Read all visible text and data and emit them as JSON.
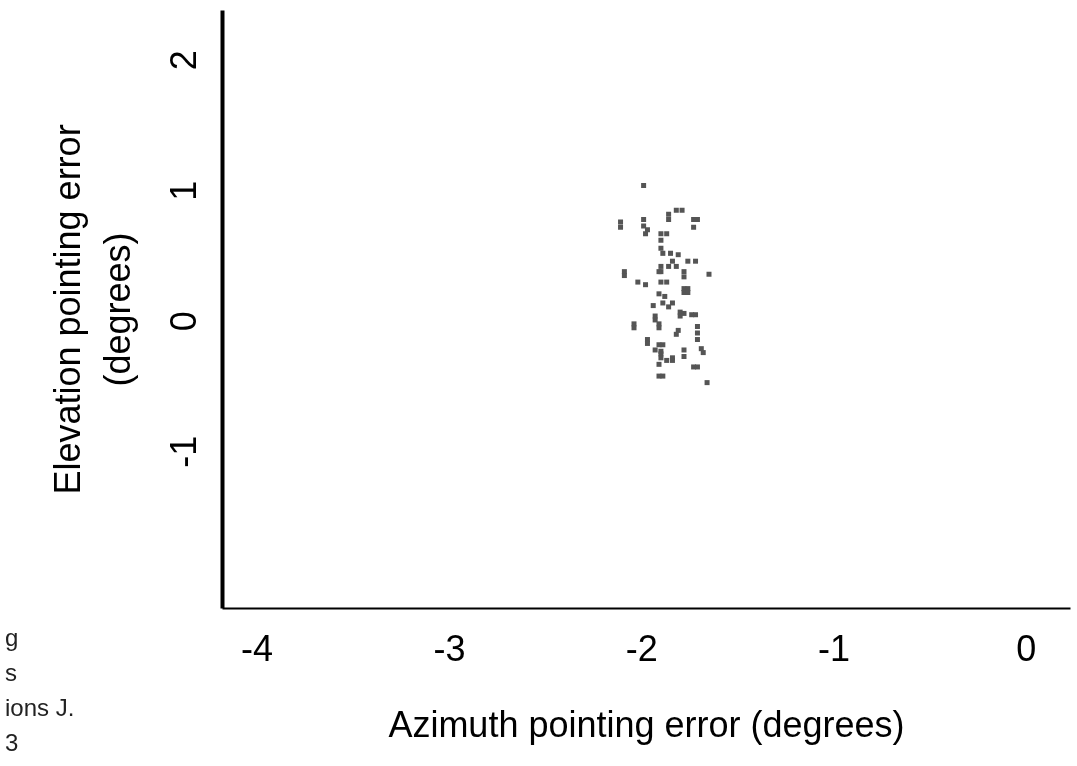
{
  "chart_data": {
    "type": "scatter",
    "xlabel": "Azimuth pointing error (degrees)",
    "ylabel": "Elevation pointing error\n(degrees)",
    "x": [
      -1.99,
      -1.82,
      -1.79,
      -1.86,
      -1.99,
      -2.11,
      -1.86,
      -1.73,
      -1.71,
      -1.73,
      -2.11,
      -1.99,
      -1.97,
      -1.98,
      -1.9,
      -1.87,
      -1.9,
      -1.9,
      -1.89,
      -1.85,
      -1.81,
      -1.84,
      -1.76,
      -1.72,
      -1.9,
      -1.86,
      -1.82,
      -1.9,
      -1.91,
      -1.78,
      -2.09,
      -2.09,
      -1.65,
      -1.78,
      -2.02,
      -1.98,
      -1.9,
      -1.87,
      -1.78,
      -1.76,
      -1.78,
      -1.76,
      -1.91,
      -1.88,
      -1.89,
      -1.84,
      -1.94,
      -1.86,
      -1.8,
      -1.78,
      -1.74,
      -1.72,
      -1.93,
      -1.8,
      -1.93,
      -1.91,
      -2.04,
      -2.04,
      -1.91,
      -1.71,
      -1.81,
      -1.82,
      -1.71,
      -1.97,
      -1.71,
      -1.97,
      -1.91,
      -1.89,
      -1.69,
      -1.93,
      -1.9,
      -1.78,
      -1.68,
      -1.9,
      -1.78,
      -1.84,
      -1.9,
      -1.87,
      -1.84,
      -1.73,
      -1.71,
      -1.91,
      -1.91,
      -1.89,
      -1.66
    ],
    "series": [
      {
        "color": "#555555",
        "values": [
          1.04,
          0.85,
          0.85,
          0.82,
          0.78,
          0.76,
          0.78,
          0.78,
          0.78,
          0.72,
          0.72,
          0.73,
          0.7,
          0.67,
          0.67,
          0.67,
          0.62,
          0.56,
          0.52,
          0.52,
          0.51,
          0.46,
          0.46,
          0.46,
          0.42,
          0.42,
          0.42,
          0.38,
          0.38,
          0.38,
          0.38,
          0.35,
          0.36,
          0.34,
          0.3,
          0.28,
          0.3,
          0.3,
          0.25,
          0.25,
          0.22,
          0.22,
          0.21,
          0.19,
          0.14,
          0.14,
          0.12,
          0.11,
          0.07,
          0.06,
          0.05,
          0.05,
          0.04,
          0.04,
          0.01,
          -0.02,
          -0.02,
          -0.05,
          -0.05,
          -0.04,
          -0.07,
          -0.1,
          -0.09,
          -0.14,
          -0.14,
          -0.17,
          -0.18,
          -0.18,
          -0.21,
          -0.22,
          -0.23,
          -0.22,
          -0.24,
          -0.25,
          -0.27,
          -0.28,
          -0.28,
          -0.3,
          -0.3,
          -0.35,
          -0.35,
          -0.33,
          -0.42,
          -0.42,
          -0.47
        ]
      }
    ],
    "marker": "square",
    "xlim": [
      -4.18,
      0.23
    ],
    "ylim": [
      -2.2,
      2.38
    ],
    "xticks": [
      -4,
      -3,
      -2,
      -1,
      0
    ],
    "yticks": [
      -1,
      0,
      1,
      2
    ],
    "grid": false,
    "annotations": [
      "g",
      "s",
      "ions J.",
      "3"
    ]
  }
}
